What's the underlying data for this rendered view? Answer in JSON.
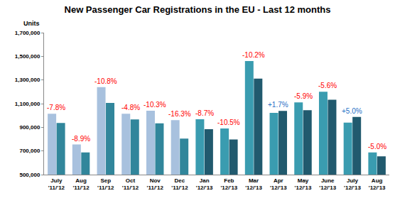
{
  "chart_data": {
    "type": "bar",
    "title": "New Passenger Car Registrations in the EU - Last 12 months",
    "ylabel": "Units",
    "categories": [
      "July\n'11/'12",
      "Aug\n'11/'12",
      "Sep\n'11/'12",
      "Oct\n'11/'12",
      "Nov\n'11/'12",
      "Dec\n'11/'12",
      "Jan\n'12/'13",
      "Feb\n'12/'13",
      "Mar\n'12/'13",
      "Apr\n'12/'13",
      "May\n'12/'13",
      "June\n'12/'13",
      "July\n'12/'13",
      "Aug\n'12/'13"
    ],
    "series": [
      {
        "values": [
          1015000,
          755000,
          1240000,
          1015000,
          1040000,
          960000,
          968000,
          890000,
          1460000,
          1022000,
          1110000,
          1200000,
          940000,
          688000
        ],
        "colors": [
          "#a8c1de",
          "#a8c1de",
          "#a8c1de",
          "#a8c1de",
          "#a8c1de",
          "#a8c1de",
          "#3a9cb0",
          "#3a9cb0",
          "#3a9cb0",
          "#3a9cb0",
          "#3a9cb0",
          "#3a9cb0",
          "#3a9cb0",
          "#3a9cb0"
        ]
      },
      {
        "values": [
          936000,
          688000,
          1106000,
          966000,
          933000,
          804000,
          884000,
          797000,
          1311000,
          1039000,
          1045000,
          1133000,
          987000,
          654000
        ],
        "colors": [
          "#31869b",
          "#31869b",
          "#31869b",
          "#31869b",
          "#31869b",
          "#31869b",
          "#215a6e",
          "#215a6e",
          "#215a6e",
          "#215a6e",
          "#215a6e",
          "#215a6e",
          "#215a6e",
          "#215a6e"
        ]
      }
    ],
    "annotations": [
      {
        "text": "-7.8%",
        "color": "#ff0000"
      },
      {
        "text": "-8.9%",
        "color": "#ff0000"
      },
      {
        "text": "-10.8%",
        "color": "#ff0000"
      },
      {
        "text": "-4.8%",
        "color": "#ff0000"
      },
      {
        "text": "-10.3%",
        "color": "#ff0000"
      },
      {
        "text": "-16.3%",
        "color": "#ff0000"
      },
      {
        "text": "-8.7%",
        "color": "#ff0000"
      },
      {
        "text": "-10.5%",
        "color": "#ff0000"
      },
      {
        "text": "-10.2%",
        "color": "#ff0000"
      },
      {
        "text": "+1.7%",
        "color": "#1f6fc5"
      },
      {
        "text": "-5.9%",
        "color": "#ff0000"
      },
      {
        "text": "-5.6%",
        "color": "#ff0000"
      },
      {
        "text": "+5.0%",
        "color": "#1f6fc5"
      },
      {
        "text": "-5.0%",
        "color": "#ff0000"
      }
    ],
    "ylim": [
      500000,
      1700000
    ],
    "yticks": [
      {
        "value": 500000,
        "label": "500,000"
      },
      {
        "value": 700000,
        "label": "700,000"
      },
      {
        "value": 900000,
        "label": "900,000"
      },
      {
        "value": 1100000,
        "label": "1,100,000"
      },
      {
        "value": 1300000,
        "label": "1,300,000"
      },
      {
        "value": 1500000,
        "label": "1,500,000"
      },
      {
        "value": 1700000,
        "label": "1,700,000"
      }
    ],
    "grid": false
  }
}
